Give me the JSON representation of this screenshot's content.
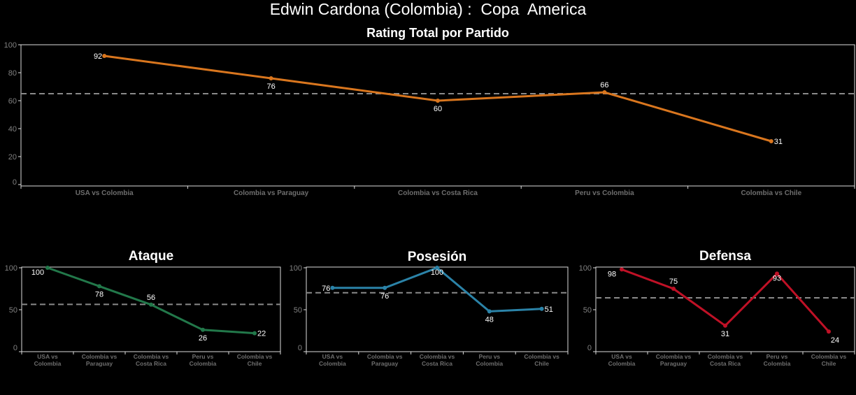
{
  "title": "Edwin Cardona (Colombia) :  Copa  America",
  "chart_data": [
    {
      "type": "line",
      "title": "Rating Total por Partido",
      "categories": [
        "USA vs Colombia",
        "Colombia vs Paraguay",
        "Colombia vs Costa Rica",
        "Peru vs Colombia",
        "Colombia vs Chile"
      ],
      "values": [
        92,
        76,
        60,
        66,
        31
      ],
      "mean_line": 65,
      "yticks": [
        0,
        20,
        40,
        60,
        80,
        100
      ],
      "ylim": [
        0,
        100
      ],
      "color": "#d9761e",
      "grid": false
    },
    {
      "type": "line",
      "title": "Ataque",
      "categories": [
        "USA vs Colombia",
        "Colombia vs Paraguay",
        "Colombia vs Costa Rica",
        "Peru vs Colombia",
        "Colombia vs Chile"
      ],
      "values": [
        100,
        78,
        56,
        26,
        22
      ],
      "mean_line": 56.4,
      "yticks": [
        0,
        50,
        100
      ],
      "ylim": [
        0,
        100
      ],
      "color": "#22784a",
      "grid": false
    },
    {
      "type": "line",
      "title": "Posesión",
      "categories": [
        "USA vs Colombia",
        "Colombia vs Paraguay",
        "Colombia vs Costa Rica",
        "Peru vs Colombia",
        "Colombia vs Chile"
      ],
      "values": [
        76,
        76,
        100,
        48,
        51
      ],
      "mean_line": 70.2,
      "yticks": [
        0,
        50,
        100
      ],
      "ylim": [
        0,
        100
      ],
      "color": "#2b83a8",
      "grid": false
    },
    {
      "type": "line",
      "title": "Defensa",
      "categories": [
        "USA vs Colombia",
        "Colombia vs Paraguay",
        "Colombia vs Costa Rica",
        "Peru vs Colombia",
        "Colombia vs Chile"
      ],
      "values": [
        98,
        75,
        31,
        93,
        24
      ],
      "mean_line": 64.2,
      "yticks": [
        0,
        50,
        100
      ],
      "ylim": [
        0,
        100
      ],
      "color": "#bf1126",
      "grid": false
    }
  ]
}
